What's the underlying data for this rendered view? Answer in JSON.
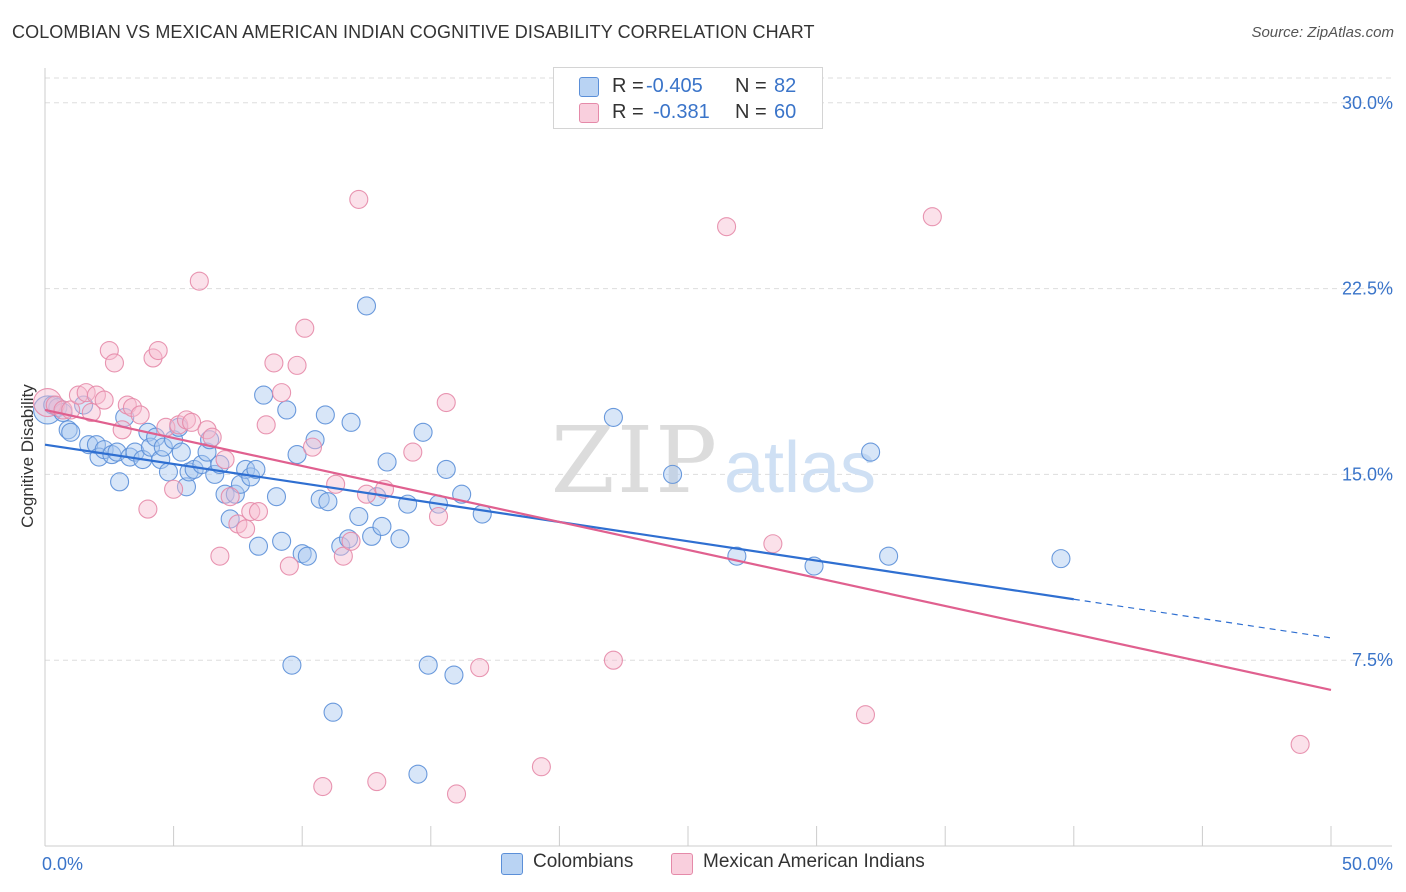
{
  "header": {
    "title": "COLOMBIAN VS MEXICAN AMERICAN INDIAN COGNITIVE DISABILITY CORRELATION CHART",
    "source": "Source: ZipAtlas.com"
  },
  "watermark": {
    "zip": "ZIP",
    "atlas": "atlas"
  },
  "legend": {
    "rows": [
      {
        "r_label": "R =",
        "r_value": "-0.405",
        "n_label": "N =",
        "n_value": "82"
      },
      {
        "r_label": "R =",
        "r_value": "-0.381",
        "n_label": "N =",
        "n_value": "60"
      }
    ],
    "bottom": [
      "Colombians",
      "Mexican American Indians"
    ]
  },
  "colors": {
    "blue_fill": "#a9c8f0",
    "blue_stroke": "#5b8fd8",
    "blue_line": "#2f6fd1",
    "pink_fill": "#f6bcd0",
    "pink_stroke": "#e58aa9",
    "pink_line": "#e0608f",
    "axis_text": "#3a74c9",
    "grid": "#dddddd"
  },
  "chart_data": {
    "type": "scatter",
    "xlabel": "",
    "ylabel": "Cognitive Disability",
    "xlim": [
      0,
      50
    ],
    "ylim": [
      0,
      31
    ],
    "x_tick_labels": [
      {
        "value": 0,
        "label": "0.0%"
      },
      {
        "value": 50,
        "label": "50.0%"
      }
    ],
    "y_tick_labels": [
      {
        "value": 7.5,
        "label": "7.5%"
      },
      {
        "value": 15.0,
        "label": "15.0%"
      },
      {
        "value": 22.5,
        "label": "22.5%"
      },
      {
        "value": 30.0,
        "label": "30.0%"
      }
    ],
    "grid": true,
    "legend_position": "top-center",
    "series": [
      {
        "name": "Colombians",
        "color": "#5b8fd8",
        "trend": {
          "x": [
            0,
            40,
            50
          ],
          "y": [
            16.2,
            10.0,
            8.4
          ],
          "solid_until": 40
        },
        "points": [
          [
            0.1,
            17.6
          ],
          [
            0.3,
            17.8
          ],
          [
            0.5,
            17.7
          ],
          [
            0.7,
            17.5
          ],
          [
            0.9,
            16.8
          ],
          [
            1.0,
            16.7
          ],
          [
            1.5,
            17.8
          ],
          [
            1.7,
            16.2
          ],
          [
            2.0,
            16.2
          ],
          [
            2.1,
            15.7
          ],
          [
            2.3,
            16.0
          ],
          [
            2.6,
            15.8
          ],
          [
            2.8,
            15.9
          ],
          [
            2.9,
            14.7
          ],
          [
            3.1,
            17.3
          ],
          [
            3.3,
            15.7
          ],
          [
            3.5,
            15.9
          ],
          [
            3.8,
            15.6
          ],
          [
            4.0,
            16.7
          ],
          [
            4.1,
            16.1
          ],
          [
            4.3,
            16.5
          ],
          [
            4.5,
            15.6
          ],
          [
            4.6,
            16.1
          ],
          [
            4.8,
            15.1
          ],
          [
            5.0,
            16.4
          ],
          [
            5.2,
            16.9
          ],
          [
            5.3,
            15.9
          ],
          [
            5.5,
            14.5
          ],
          [
            5.6,
            15.1
          ],
          [
            5.8,
            15.2
          ],
          [
            6.1,
            15.4
          ],
          [
            6.3,
            15.9
          ],
          [
            6.4,
            16.4
          ],
          [
            6.6,
            15.0
          ],
          [
            6.8,
            15.4
          ],
          [
            7.0,
            14.2
          ],
          [
            7.2,
            13.2
          ],
          [
            7.4,
            14.2
          ],
          [
            7.6,
            14.6
          ],
          [
            7.8,
            15.2
          ],
          [
            8.0,
            14.9
          ],
          [
            8.2,
            15.2
          ],
          [
            8.3,
            12.1
          ],
          [
            8.5,
            18.2
          ],
          [
            9.0,
            14.1
          ],
          [
            9.2,
            12.3
          ],
          [
            9.4,
            17.6
          ],
          [
            9.6,
            7.3
          ],
          [
            9.8,
            15.8
          ],
          [
            10.0,
            11.8
          ],
          [
            10.2,
            11.7
          ],
          [
            10.5,
            16.4
          ],
          [
            10.7,
            14.0
          ],
          [
            10.9,
            17.4
          ],
          [
            11.0,
            13.9
          ],
          [
            11.2,
            5.4
          ],
          [
            11.5,
            12.1
          ],
          [
            11.8,
            12.4
          ],
          [
            11.9,
            17.1
          ],
          [
            12.2,
            13.3
          ],
          [
            12.5,
            21.8
          ],
          [
            12.7,
            12.5
          ],
          [
            12.9,
            14.1
          ],
          [
            13.1,
            12.9
          ],
          [
            13.3,
            15.5
          ],
          [
            13.8,
            12.4
          ],
          [
            14.1,
            13.8
          ],
          [
            14.5,
            2.9
          ],
          [
            14.7,
            16.7
          ],
          [
            14.9,
            7.3
          ],
          [
            15.3,
            13.8
          ],
          [
            15.6,
            15.2
          ],
          [
            15.9,
            6.9
          ],
          [
            16.2,
            14.2
          ],
          [
            17.0,
            13.4
          ],
          [
            22.1,
            17.3
          ],
          [
            24.4,
            15.0
          ],
          [
            26.9,
            11.7
          ],
          [
            29.9,
            11.3
          ],
          [
            32.1,
            15.9
          ],
          [
            32.8,
            11.7
          ],
          [
            39.5,
            11.6
          ]
        ]
      },
      {
        "name": "Mexican American Indians",
        "color": "#e58aa9",
        "trend": {
          "x": [
            0,
            50
          ],
          "y": [
            17.6,
            6.3
          ],
          "solid_until": 50
        },
        "points": [
          [
            0.1,
            17.9
          ],
          [
            0.4,
            17.8
          ],
          [
            0.7,
            17.6
          ],
          [
            1.0,
            17.6
          ],
          [
            1.3,
            18.2
          ],
          [
            1.6,
            18.3
          ],
          [
            1.8,
            17.5
          ],
          [
            2.0,
            18.2
          ],
          [
            2.3,
            18.0
          ],
          [
            2.5,
            20.0
          ],
          [
            2.7,
            19.5
          ],
          [
            3.0,
            16.8
          ],
          [
            3.2,
            17.8
          ],
          [
            3.4,
            17.7
          ],
          [
            3.7,
            17.4
          ],
          [
            4.0,
            13.6
          ],
          [
            4.2,
            19.7
          ],
          [
            4.4,
            20.0
          ],
          [
            4.7,
            16.9
          ],
          [
            5.0,
            14.4
          ],
          [
            5.2,
            17.0
          ],
          [
            5.5,
            17.2
          ],
          [
            5.7,
            17.1
          ],
          [
            6.0,
            22.8
          ],
          [
            6.3,
            16.8
          ],
          [
            6.5,
            16.5
          ],
          [
            6.8,
            11.7
          ],
          [
            7.0,
            15.6
          ],
          [
            7.2,
            14.1
          ],
          [
            7.5,
            13.0
          ],
          [
            7.8,
            12.8
          ],
          [
            8.0,
            13.5
          ],
          [
            8.3,
            13.5
          ],
          [
            8.6,
            17.0
          ],
          [
            8.9,
            19.5
          ],
          [
            9.2,
            18.3
          ],
          [
            9.5,
            11.3
          ],
          [
            9.8,
            19.4
          ],
          [
            10.1,
            20.9
          ],
          [
            10.4,
            16.1
          ],
          [
            10.8,
            2.4
          ],
          [
            11.3,
            14.6
          ],
          [
            11.6,
            11.7
          ],
          [
            11.9,
            12.3
          ],
          [
            12.2,
            26.1
          ],
          [
            12.5,
            14.2
          ],
          [
            12.9,
            2.6
          ],
          [
            13.2,
            14.4
          ],
          [
            14.3,
            15.9
          ],
          [
            15.3,
            13.3
          ],
          [
            15.6,
            17.9
          ],
          [
            16.0,
            2.1
          ],
          [
            16.9,
            7.2
          ],
          [
            19.3,
            3.2
          ],
          [
            22.1,
            7.5
          ],
          [
            26.5,
            25.0
          ],
          [
            28.3,
            12.2
          ],
          [
            31.9,
            5.3
          ],
          [
            34.5,
            25.4
          ],
          [
            48.8,
            4.1
          ]
        ]
      }
    ]
  }
}
